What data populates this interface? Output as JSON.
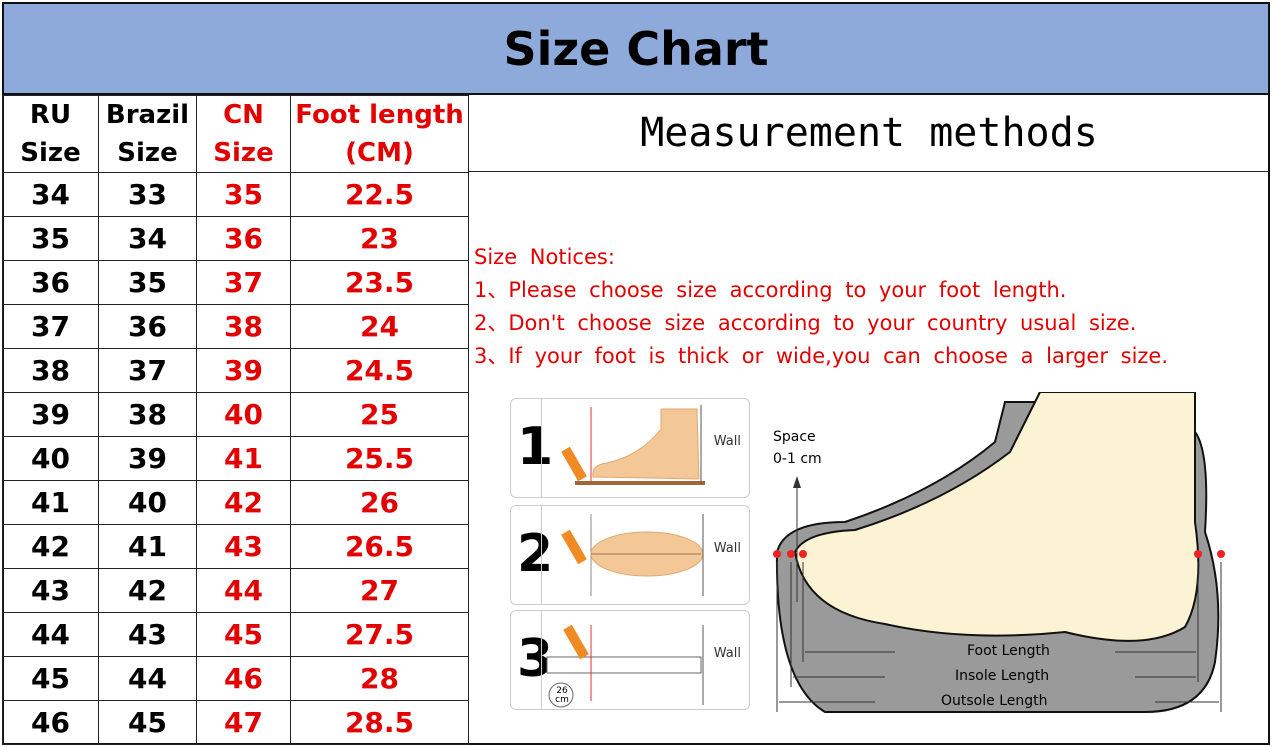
{
  "title": "Size Chart",
  "table": {
    "headers": [
      [
        "RU",
        "Size"
      ],
      [
        "Brazil",
        "Size"
      ],
      [
        "CN",
        "Size"
      ],
      [
        "Foot length",
        "(CM)"
      ]
    ],
    "rows": [
      [
        "34",
        "33",
        "35",
        "22.5"
      ],
      [
        "35",
        "34",
        "36",
        "23"
      ],
      [
        "36",
        "35",
        "37",
        "23.5"
      ],
      [
        "37",
        "36",
        "38",
        "24"
      ],
      [
        "38",
        "37",
        "39",
        "24.5"
      ],
      [
        "39",
        "38",
        "40",
        "25"
      ],
      [
        "40",
        "39",
        "41",
        "25.5"
      ],
      [
        "41",
        "40",
        "42",
        "26"
      ],
      [
        "42",
        "41",
        "43",
        "26.5"
      ],
      [
        "43",
        "42",
        "44",
        "27"
      ],
      [
        "44",
        "43",
        "45",
        "27.5"
      ],
      [
        "45",
        "44",
        "46",
        "28"
      ],
      [
        "46",
        "45",
        "47",
        "28.5"
      ]
    ]
  },
  "measurement": {
    "heading": "Measurement methods",
    "notices": [
      "Size Notices:",
      "1、Please choose size according to your foot length.",
      "2、Don't choose size according to your country usual size.",
      "3、If your foot is thick or wide,you can choose a larger size."
    ],
    "steps": [
      {
        "num": "1",
        "wall": "Wall"
      },
      {
        "num": "2",
        "wall": "Wall"
      },
      {
        "num": "3",
        "wall": "Wall",
        "ruler": "26 cm"
      }
    ],
    "diagram": {
      "space": "Space",
      "space_range": "0-1 cm",
      "foot_length": "Foot Length",
      "insole_length": "Insole Length",
      "outsole_length": "Outsole Length"
    }
  },
  "colors": {
    "header_bg": "#8eaadb",
    "accent_red": "#e30000"
  }
}
